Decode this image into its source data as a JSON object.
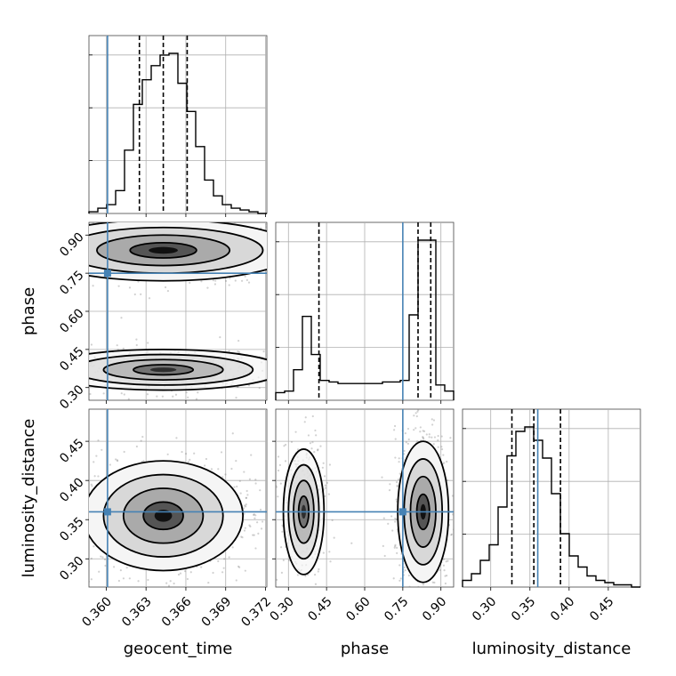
{
  "chart_data": {
    "type": "corner",
    "parameters": [
      "geocent_time",
      "phase",
      "luminosity_distance"
    ],
    "colors": {
      "truth": "#4682b4",
      "hist": "#000000",
      "grid": "#b0b0b0"
    },
    "truths": {
      "geocent_time": 0.3601,
      "phase": 0.75,
      "luminosity_distance": 0.36
    },
    "ranges": {
      "geocent_time": [
        0.3587,
        0.3721
      ],
      "phase": [
        0.25,
        0.95
      ],
      "luminosity_distance": [
        0.264,
        0.491
      ]
    },
    "ticks": {
      "geocent_time": {
        "values": [
          0.36,
          0.363,
          0.366,
          0.369,
          0.372
        ],
        "labels": [
          "0.360",
          "0.363",
          "0.366",
          "0.369",
          "0.372"
        ]
      },
      "phase": {
        "values": [
          0.3,
          0.45,
          0.6,
          0.75,
          0.9
        ],
        "labels": [
          "0.30",
          "0.45",
          "0.60",
          "0.75",
          "0.90"
        ]
      },
      "luminosity_distance": {
        "values": [
          0.3,
          0.35,
          0.4,
          0.45
        ],
        "labels": [
          "0.30",
          "0.35",
          "0.40",
          "0.45"
        ]
      }
    },
    "quantiles": {
      "geocent_time": [
        0.3625,
        0.3643,
        0.3661
      ],
      "phase": [
        0.42,
        0.81,
        0.86
      ],
      "luminosity_distance": [
        0.327,
        0.355,
        0.389
      ]
    },
    "histograms": {
      "geocent_time": {
        "edges_start": 0.3587,
        "bin_width": 0.00067,
        "counts": [
          1,
          3,
          5,
          13,
          36,
          62,
          76,
          84,
          90,
          91,
          74,
          58,
          38,
          19,
          10,
          5,
          3,
          2,
          1,
          0
        ]
      },
      "phase": {
        "edges_start": 0.25,
        "bin_width": 0.035,
        "counts": [
          5,
          6,
          20,
          55,
          30,
          13,
          12,
          11,
          11,
          11,
          11,
          11,
          12,
          12,
          13,
          56,
          105,
          105,
          10,
          6
        ]
      },
      "luminosity_distance": {
        "edges_start": 0.264,
        "bin_width": 0.01135,
        "counts": [
          3,
          6,
          12,
          19,
          36,
          59,
          70,
          72,
          66,
          58,
          42,
          24,
          14,
          9,
          5,
          3,
          2,
          1,
          1,
          0
        ]
      }
    },
    "joint": [
      {
        "x": "geocent_time",
        "y": "phase",
        "modes": [
          {
            "center": [
              0.3643,
              0.84
            ],
            "extent": [
              0.005,
              0.06
            ],
            "weight": 1.0
          },
          {
            "center": [
              0.3643,
              0.37
            ],
            "extent": [
              0.0045,
              0.04
            ],
            "weight": 0.45
          }
        ]
      },
      {
        "x": "geocent_time",
        "y": "luminosity_distance",
        "modes": [
          {
            "center": [
              0.3643,
              0.355
            ],
            "extent": [
              0.003,
              0.035
            ],
            "weight": 1.0
          }
        ]
      },
      {
        "x": "phase",
        "y": "luminosity_distance",
        "modes": [
          {
            "center": [
              0.83,
              0.36
            ],
            "extent": [
              0.05,
              0.045
            ],
            "weight": 1.0
          },
          {
            "center": [
              0.36,
              0.36
            ],
            "extent": [
              0.04,
              0.04
            ],
            "weight": 0.45
          }
        ]
      }
    ]
  }
}
